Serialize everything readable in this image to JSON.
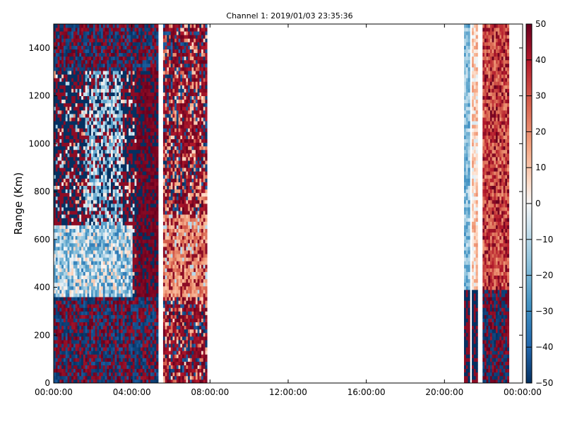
{
  "chart_data": {
    "type": "heatmap",
    "title": "Channel 1: 2019/01/03 23:35:36",
    "ylabel": "Range (Km)",
    "xlabel": "",
    "xlim_hours": [
      0,
      24
    ],
    "ylim": [
      0,
      1500
    ],
    "x_ticks": [
      {
        "hour": 0,
        "label": "00:00:00"
      },
      {
        "hour": 4,
        "label": "04:00:00"
      },
      {
        "hour": 8,
        "label": "08:00:00"
      },
      {
        "hour": 12,
        "label": "12:00:00"
      },
      {
        "hour": 16,
        "label": "16:00:00"
      },
      {
        "hour": 20,
        "label": "20:00:00"
      },
      {
        "hour": 24,
        "label": "00:00:00"
      }
    ],
    "y_ticks": [
      0,
      200,
      400,
      600,
      800,
      1000,
      1200,
      1400
    ],
    "colorbar": {
      "min": -50,
      "max": 50,
      "ticks": [
        50,
        40,
        30,
        20,
        10,
        0,
        -10,
        -20,
        -30,
        -40,
        -50
      ],
      "colormap": "RdBu_r",
      "colors": {
        "low": "#053061",
        "mid": "#f7f7f7",
        "high": "#67001f"
      }
    },
    "data_segments": [
      {
        "start_hour": 0.0,
        "end_hour": 5.35
      },
      {
        "start_hour": 5.6,
        "end_hour": 7.85
      },
      {
        "start_hour": 21.0,
        "end_hour": 21.3
      },
      {
        "start_hour": 21.4,
        "end_hour": 21.7
      },
      {
        "start_hour": 21.95,
        "end_hour": 23.3
      }
    ],
    "grid": false
  }
}
